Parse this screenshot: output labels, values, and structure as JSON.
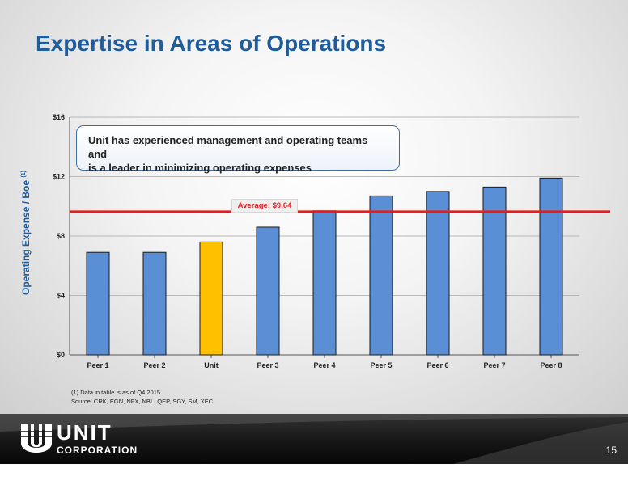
{
  "slide": {
    "title": "Expertise in Areas of Operations",
    "callout_line1": "Unit has experienced management and operating teams and",
    "callout_line2": "is a leader in minimizing operating expenses",
    "footnote_line1": "(1)  Data in table is as of Q4 2015.",
    "footnote_line2": "Source:  CRK, EGN, NFX, NBL, QEP, SGY, SM, XEC",
    "page_number": "15",
    "logo_text": "UNIT",
    "logo_subtext": "CORPORATION"
  },
  "chart_data": {
    "type": "bar",
    "ylabel": "Operating Expense / Boe",
    "ylabel_superscript": "(1)",
    "categories": [
      "Peer 1",
      "Peer 2",
      "Unit",
      "Peer 3",
      "Peer 4",
      "Peer 5",
      "Peer 6",
      "Peer 7",
      "Peer 8"
    ],
    "values": [
      6.9,
      6.9,
      7.6,
      8.6,
      9.7,
      10.7,
      11.0,
      11.3,
      11.9
    ],
    "highlight_category": "Unit",
    "ylim": [
      0,
      16
    ],
    "yticks": [
      0,
      4,
      8,
      12,
      16
    ],
    "ytick_labels": [
      "$0",
      "$4",
      "$8",
      "$12",
      "$16"
    ],
    "average": 9.64,
    "average_label": "Average:  $9.64",
    "colors": {
      "bar": "#5a8fd6",
      "highlight": "#ffc000",
      "average_line": "#e02020",
      "bar_border": "#1a1a1a"
    },
    "grid": true
  }
}
